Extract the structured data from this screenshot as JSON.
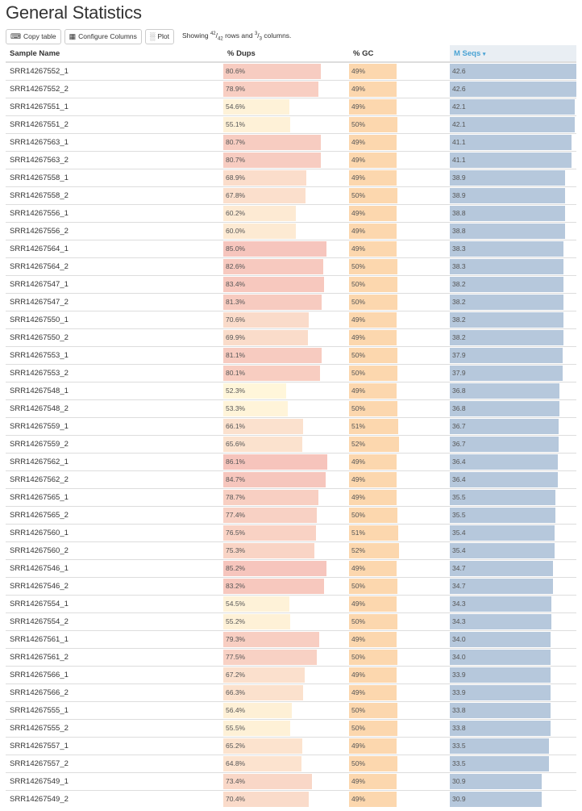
{
  "title": "General Statistics",
  "toolbar": {
    "copy_label": "Copy table",
    "configure_label": "Configure Columns",
    "plot_label": "Plot",
    "showing_prefix": "Showing",
    "rows_shown": "42",
    "rows_total": "42",
    "rows_word": "rows and",
    "cols_shown": "3",
    "cols_total": "3",
    "cols_word": "columns."
  },
  "columns": [
    "Sample Name",
    "% Dups",
    "% GC",
    "M Seqs"
  ],
  "sort_indicator": "▾",
  "colors": {
    "seqs_bar": "#b6c8dc",
    "gc_bar": "#fcd7ae",
    "dups_low": "#fff6da",
    "dups_high": "#f6c4bc"
  },
  "rows": [
    {
      "name": "SRR14267552_1",
      "dups": "80.6%",
      "gc": "49%",
      "seqs": "42.6"
    },
    {
      "name": "SRR14267552_2",
      "dups": "78.9%",
      "gc": "49%",
      "seqs": "42.6"
    },
    {
      "name": "SRR14267551_1",
      "dups": "54.6%",
      "gc": "49%",
      "seqs": "42.1"
    },
    {
      "name": "SRR14267551_2",
      "dups": "55.1%",
      "gc": "50%",
      "seqs": "42.1"
    },
    {
      "name": "SRR14267563_1",
      "dups": "80.7%",
      "gc": "49%",
      "seqs": "41.1"
    },
    {
      "name": "SRR14267563_2",
      "dups": "80.7%",
      "gc": "49%",
      "seqs": "41.1"
    },
    {
      "name": "SRR14267558_1",
      "dups": "68.9%",
      "gc": "49%",
      "seqs": "38.9"
    },
    {
      "name": "SRR14267558_2",
      "dups": "67.8%",
      "gc": "50%",
      "seqs": "38.9"
    },
    {
      "name": "SRR14267556_1",
      "dups": "60.2%",
      "gc": "49%",
      "seqs": "38.8"
    },
    {
      "name": "SRR14267556_2",
      "dups": "60.0%",
      "gc": "49%",
      "seqs": "38.8"
    },
    {
      "name": "SRR14267564_1",
      "dups": "85.0%",
      "gc": "49%",
      "seqs": "38.3"
    },
    {
      "name": "SRR14267564_2",
      "dups": "82.6%",
      "gc": "50%",
      "seqs": "38.3"
    },
    {
      "name": "SRR14267547_1",
      "dups": "83.4%",
      "gc": "50%",
      "seqs": "38.2"
    },
    {
      "name": "SRR14267547_2",
      "dups": "81.3%",
      "gc": "50%",
      "seqs": "38.2"
    },
    {
      "name": "SRR14267550_1",
      "dups": "70.6%",
      "gc": "49%",
      "seqs": "38.2"
    },
    {
      "name": "SRR14267550_2",
      "dups": "69.9%",
      "gc": "49%",
      "seqs": "38.2"
    },
    {
      "name": "SRR14267553_1",
      "dups": "81.1%",
      "gc": "50%",
      "seqs": "37.9"
    },
    {
      "name": "SRR14267553_2",
      "dups": "80.1%",
      "gc": "50%",
      "seqs": "37.9"
    },
    {
      "name": "SRR14267548_1",
      "dups": "52.3%",
      "gc": "49%",
      "seqs": "36.8"
    },
    {
      "name": "SRR14267548_2",
      "dups": "53.3%",
      "gc": "50%",
      "seqs": "36.8"
    },
    {
      "name": "SRR14267559_1",
      "dups": "66.1%",
      "gc": "51%",
      "seqs": "36.7"
    },
    {
      "name": "SRR14267559_2",
      "dups": "65.6%",
      "gc": "52%",
      "seqs": "36.7"
    },
    {
      "name": "SRR14267562_1",
      "dups": "86.1%",
      "gc": "49%",
      "seqs": "36.4"
    },
    {
      "name": "SRR14267562_2",
      "dups": "84.7%",
      "gc": "49%",
      "seqs": "36.4"
    },
    {
      "name": "SRR14267565_1",
      "dups": "78.7%",
      "gc": "49%",
      "seqs": "35.5"
    },
    {
      "name": "SRR14267565_2",
      "dups": "77.4%",
      "gc": "50%",
      "seqs": "35.5"
    },
    {
      "name": "SRR14267560_1",
      "dups": "76.5%",
      "gc": "51%",
      "seqs": "35.4"
    },
    {
      "name": "SRR14267560_2",
      "dups": "75.3%",
      "gc": "52%",
      "seqs": "35.4"
    },
    {
      "name": "SRR14267546_1",
      "dups": "85.2%",
      "gc": "49%",
      "seqs": "34.7"
    },
    {
      "name": "SRR14267546_2",
      "dups": "83.2%",
      "gc": "50%",
      "seqs": "34.7"
    },
    {
      "name": "SRR14267554_1",
      "dups": "54.5%",
      "gc": "49%",
      "seqs": "34.3"
    },
    {
      "name": "SRR14267554_2",
      "dups": "55.2%",
      "gc": "50%",
      "seqs": "34.3"
    },
    {
      "name": "SRR14267561_1",
      "dups": "79.3%",
      "gc": "49%",
      "seqs": "34.0"
    },
    {
      "name": "SRR14267561_2",
      "dups": "77.5%",
      "gc": "50%",
      "seqs": "34.0"
    },
    {
      "name": "SRR14267566_1",
      "dups": "67.2%",
      "gc": "49%",
      "seqs": "33.9"
    },
    {
      "name": "SRR14267566_2",
      "dups": "66.3%",
      "gc": "49%",
      "seqs": "33.9"
    },
    {
      "name": "SRR14267555_1",
      "dups": "56.4%",
      "gc": "50%",
      "seqs": "33.8"
    },
    {
      "name": "SRR14267555_2",
      "dups": "55.5%",
      "gc": "50%",
      "seqs": "33.8"
    },
    {
      "name": "SRR14267557_1",
      "dups": "65.2%",
      "gc": "49%",
      "seqs": "33.5"
    },
    {
      "name": "SRR14267557_2",
      "dups": "64.8%",
      "gc": "50%",
      "seqs": "33.5"
    },
    {
      "name": "SRR14267549_1",
      "dups": "73.4%",
      "gc": "49%",
      "seqs": "30.9"
    },
    {
      "name": "SRR14267549_2",
      "dups": "70.4%",
      "gc": "49%",
      "seqs": "30.9"
    }
  ]
}
